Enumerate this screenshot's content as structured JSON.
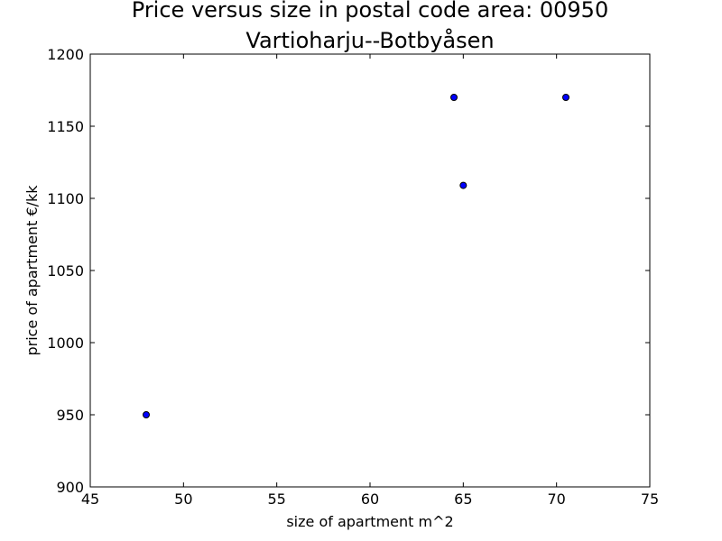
{
  "chart_data": {
    "type": "scatter",
    "title_lines": [
      "Price versus size in postal code area: 00950",
      "Vartioharju--Botbyåsen"
    ],
    "xlabel": "size of apartment m^2",
    "ylabel": "price of apartment €/kk",
    "xlim": [
      45,
      75
    ],
    "ylim": [
      900,
      1200
    ],
    "xticks": [
      45,
      50,
      55,
      60,
      65,
      70,
      75
    ],
    "yticks": [
      900,
      950,
      1000,
      1050,
      1100,
      1150,
      1200
    ],
    "grid": false,
    "points": [
      {
        "x": 48,
        "y": 950
      },
      {
        "x": 64.5,
        "y": 1170
      },
      {
        "x": 65,
        "y": 1109
      },
      {
        "x": 70.5,
        "y": 1170
      }
    ],
    "colors": {
      "marker_fill": "#0000ff",
      "marker_edge": "#000000",
      "axes": "#000000"
    }
  }
}
